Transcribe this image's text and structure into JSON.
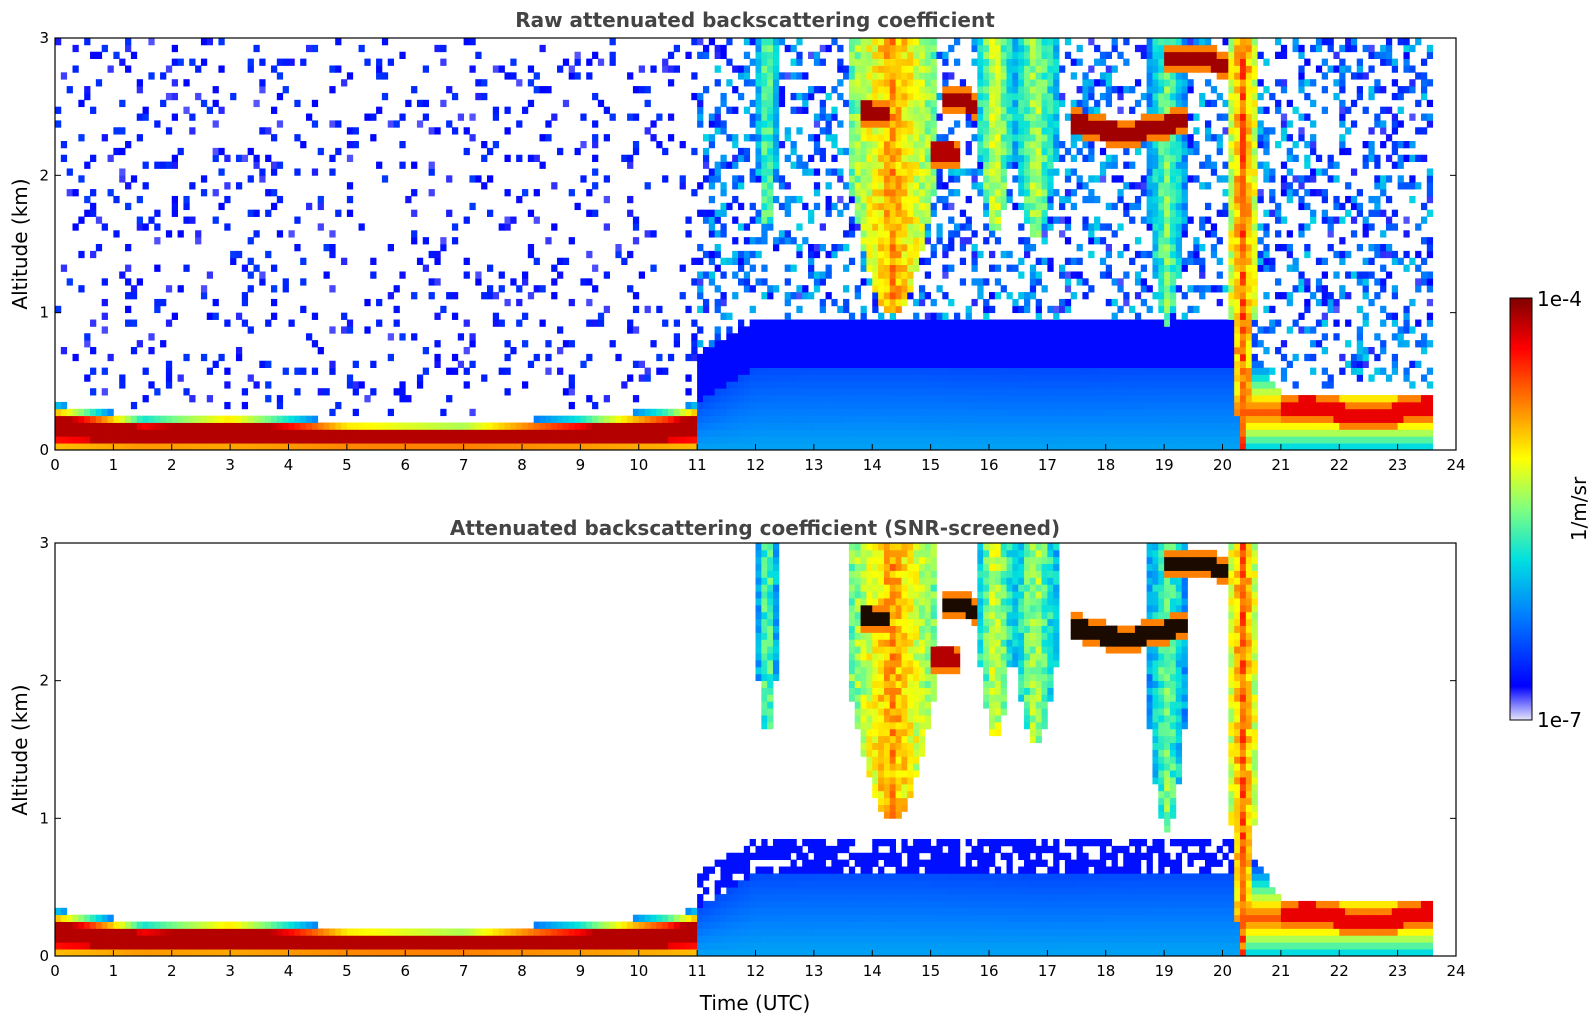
{
  "chart_data": [
    {
      "type": "heatmap",
      "title": "Raw attenuated backscattering coefficient",
      "xlabel": "",
      "ylabel": "Altitude (km)",
      "xlim": [
        0,
        24
      ],
      "ylim": [
        0,
        3
      ],
      "xticks": [
        "0",
        "1",
        "2",
        "3",
        "4",
        "5",
        "6",
        "7",
        "8",
        "9",
        "10",
        "11",
        "12",
        "13",
        "14",
        "15",
        "16",
        "17",
        "18",
        "19",
        "20",
        "21",
        "22",
        "23",
        "24"
      ],
      "yticks": [
        "0",
        "1",
        "2",
        "3"
      ],
      "screened": false,
      "data_end_hour": 23.65,
      "boundary_layer_top_km": [
        [
          0,
          0.34
        ],
        [
          1.5,
          0.24
        ],
        [
          3,
          0.27
        ],
        [
          5,
          0.21
        ],
        [
          7,
          0.2
        ],
        [
          9,
          0.24
        ],
        [
          10.5,
          0.3
        ],
        [
          11,
          0.34
        ],
        [
          12,
          0.6
        ],
        [
          14,
          0.62
        ],
        [
          17,
          0.58
        ],
        [
          19,
          0.6
        ],
        [
          20.2,
          0.6
        ],
        [
          20.6,
          0.7
        ],
        [
          21,
          0.42
        ],
        [
          22,
          0.4
        ],
        [
          23.65,
          0.42
        ]
      ],
      "features": [
        {
          "type": "cirrus",
          "t0": 13.6,
          "t1": 15.1,
          "base_km": 1.0,
          "top_km": 3.0,
          "level": 0.72
        },
        {
          "type": "cirrus",
          "t0": 15.8,
          "t1": 16.4,
          "base_km": 1.6,
          "top_km": 3.0,
          "level": 0.6
        },
        {
          "type": "cirrus",
          "t0": 16.4,
          "t1": 17.2,
          "base_km": 1.55,
          "top_km": 3.0,
          "level": 0.55
        },
        {
          "type": "cirrus",
          "t0": 12.0,
          "t1": 12.4,
          "base_km": 1.6,
          "top_km": 3.0,
          "level": 0.5
        },
        {
          "type": "cirrus",
          "t0": 18.7,
          "t1": 19.4,
          "base_km": 0.9,
          "top_km": 3.0,
          "level": 0.5
        },
        {
          "type": "cirrus",
          "t0": 20.1,
          "t1": 20.6,
          "base_km": 0.0,
          "top_km": 3.0,
          "level": 0.78
        },
        {
          "type": "cloud-layer",
          "t0": 13.8,
          "t1": 14.3,
          "height_km": 2.5,
          "level": 0.97
        },
        {
          "type": "cloud-layer",
          "t0": 15.2,
          "t1": 15.8,
          "height_km": 2.52,
          "level": 0.97
        },
        {
          "type": "cloud-layer",
          "t0": 15.0,
          "t1": 15.5,
          "height_km": 2.13,
          "level": 0.95
        },
        {
          "type": "cloud-layer",
          "t0": 17.4,
          "t1": 19.4,
          "height_km": 2.35,
          "level": 0.97
        },
        {
          "type": "cloud-layer",
          "t0": 19.0,
          "t1": 20.1,
          "height_km": 2.82,
          "level": 0.97
        },
        {
          "type": "cloud-layer",
          "t0": 21.0,
          "t1": 23.65,
          "height_km": 0.28,
          "level": 0.9
        }
      ]
    },
    {
      "type": "heatmap",
      "title": "Attenuated backscattering coefficient (SNR-screened)",
      "xlabel": "Time (UTC)",
      "ylabel": "Altitude (km)",
      "xlim": [
        0,
        24
      ],
      "ylim": [
        0,
        3
      ],
      "xticks": [
        "0",
        "1",
        "2",
        "3",
        "4",
        "5",
        "6",
        "7",
        "8",
        "9",
        "10",
        "11",
        "12",
        "13",
        "14",
        "15",
        "16",
        "17",
        "18",
        "19",
        "20",
        "21",
        "22",
        "23",
        "24"
      ],
      "yticks": [
        "0",
        "1",
        "2",
        "3"
      ],
      "screened": true,
      "data_end_hour": 23.65
    }
  ],
  "colorbar": {
    "label": "1/m/sr",
    "max_label": "1e-4",
    "min_label": "1e-7",
    "scale": "log",
    "vmin": 1e-07,
    "vmax": 0.0001,
    "colors": [
      "#e6e6fa",
      "#0000ff",
      "#0080ff",
      "#00e0e0",
      "#80ff80",
      "#ffff00",
      "#ff8000",
      "#ff0000",
      "#800000"
    ]
  }
}
